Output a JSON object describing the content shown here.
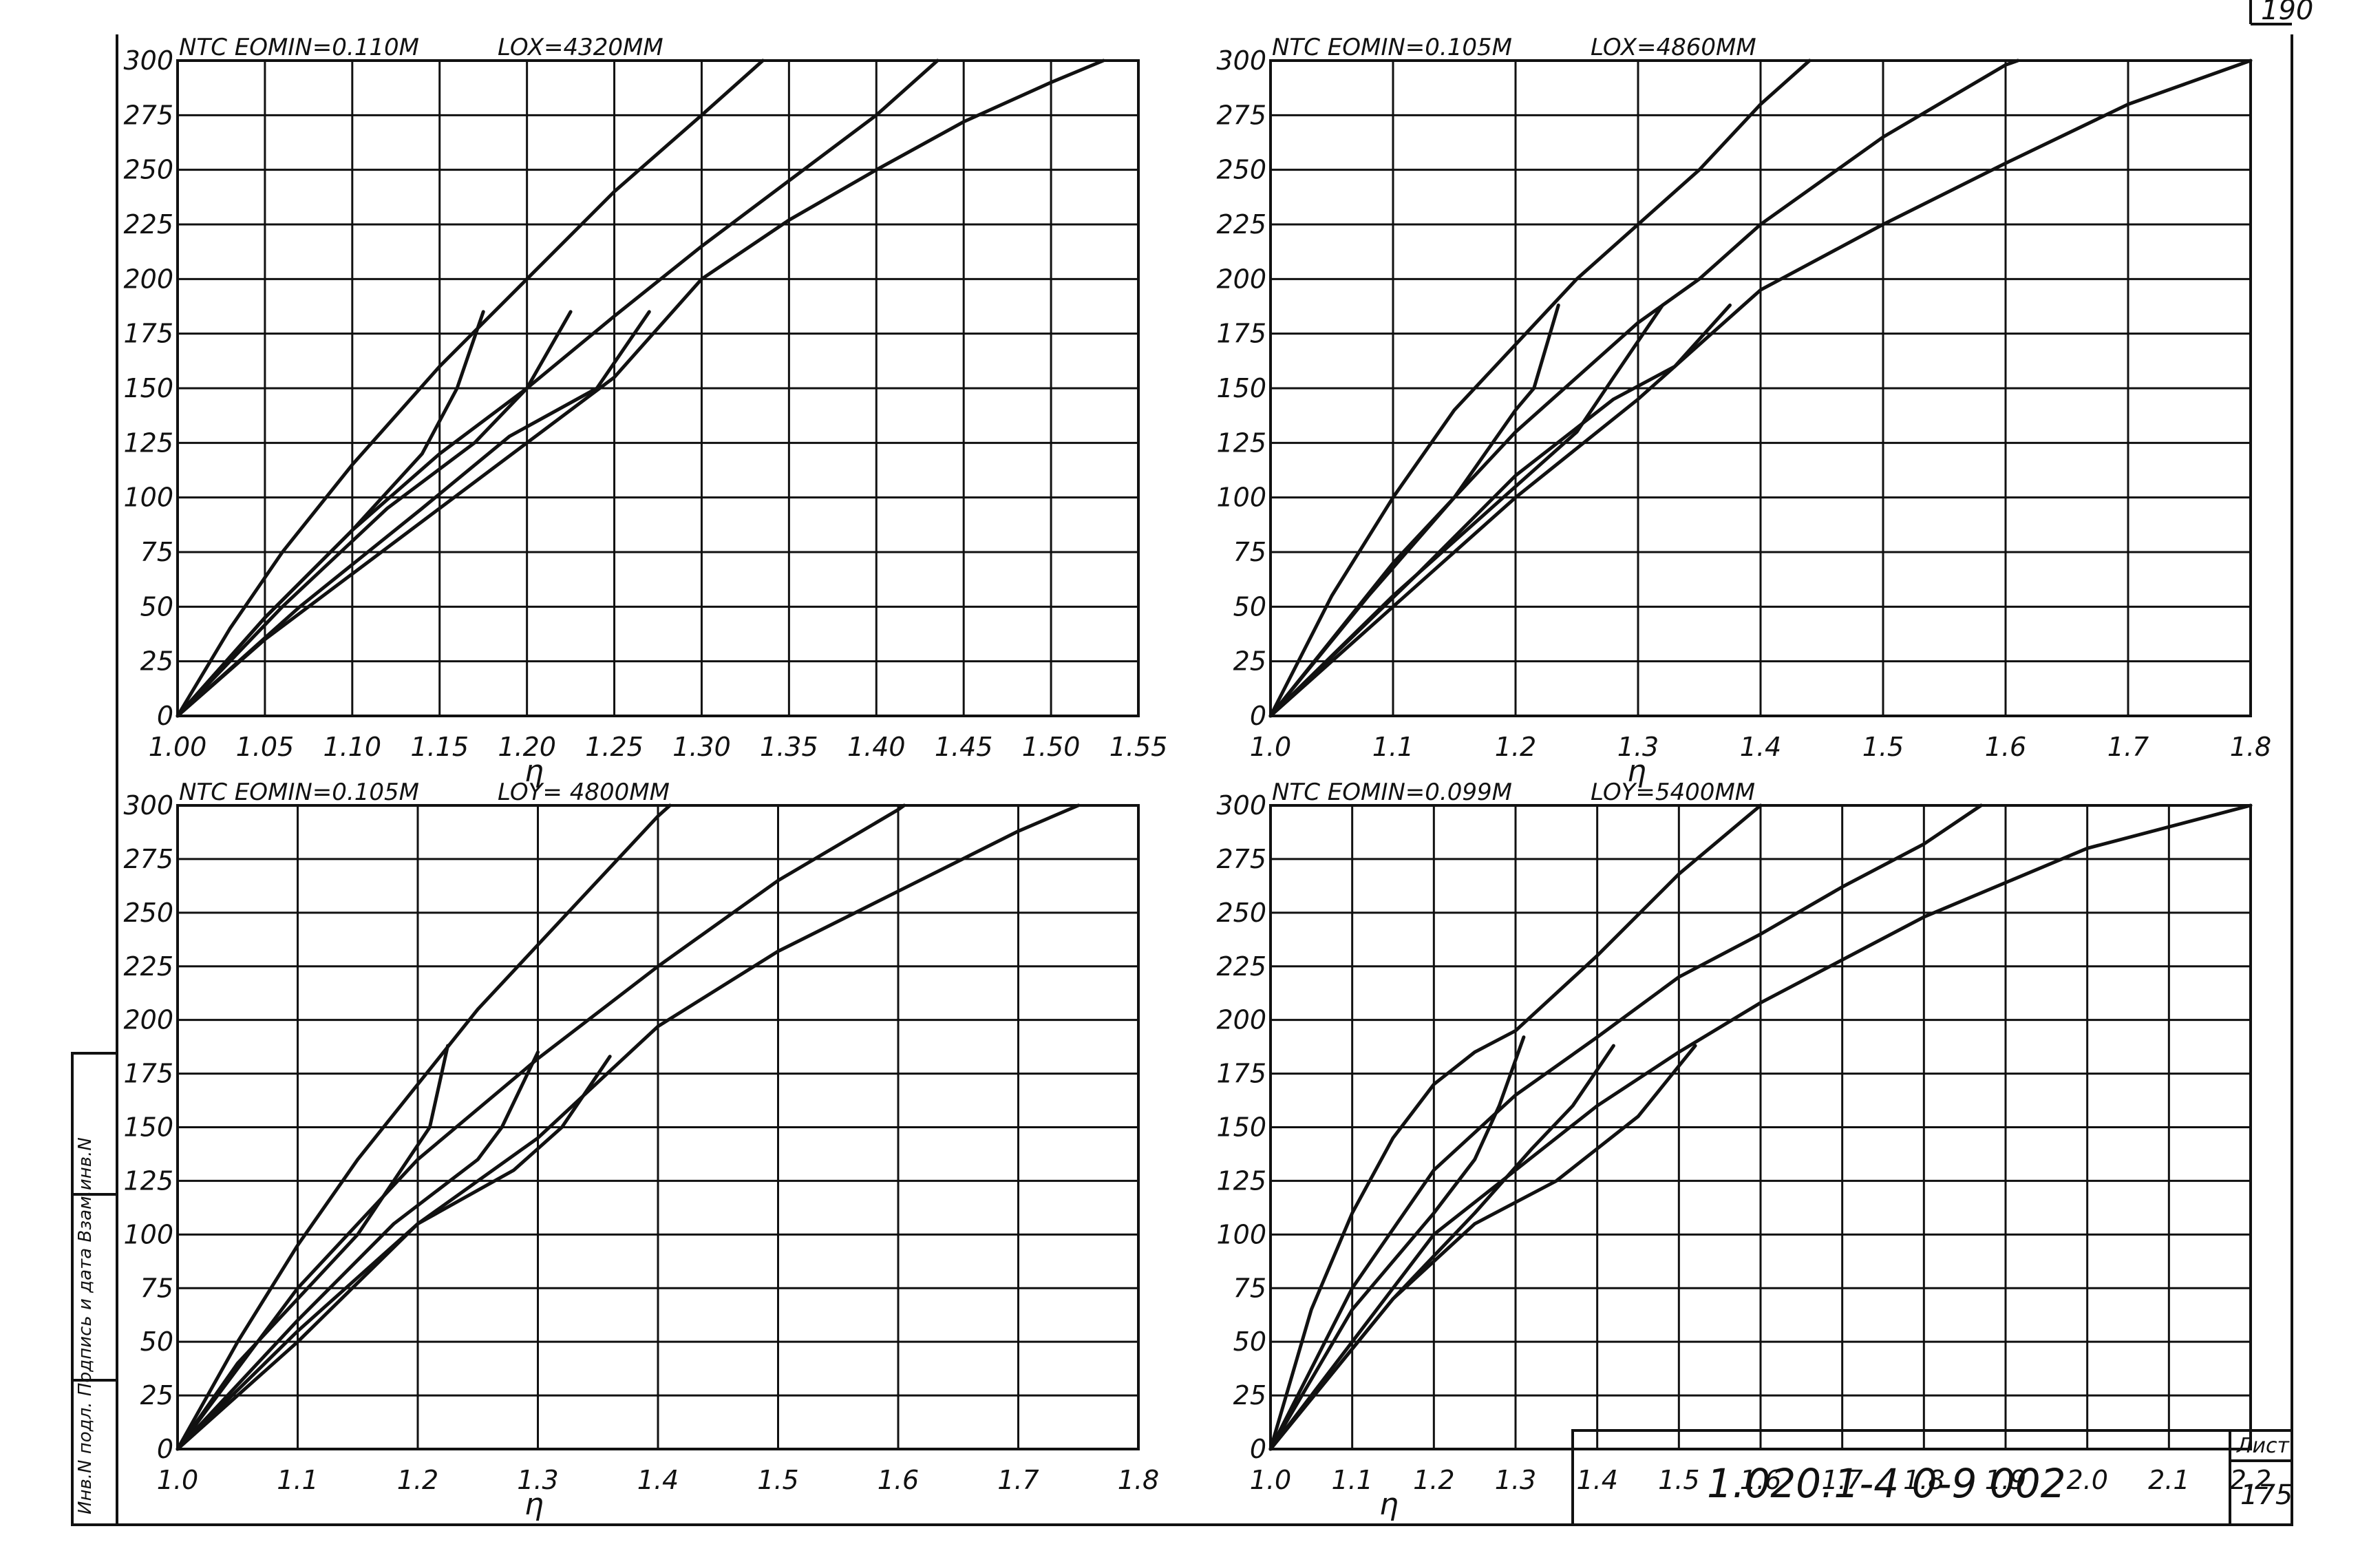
{
  "sheet": {
    "corner_number": "190",
    "title_block": {
      "code": "1.020.1-4   0-9  002",
      "sheet_label": "Лист",
      "sheet_number": "175"
    },
    "side_stamp": "Инв.N подл.   Подпись и дата   Взам.инв.N"
  },
  "chart_data": [
    {
      "type": "line",
      "header_left": "NTC EOMIN=0.110M",
      "header_right": "LOX=4320MM",
      "xlabel": "η",
      "ylabel": "",
      "xlim": [
        1.0,
        1.55
      ],
      "ylim": [
        0,
        300
      ],
      "x_ticks": [
        "1.00",
        "1.05",
        "1.10",
        "1.15",
        "1.20",
        "1.25",
        "1.30",
        "1.35",
        "1.40",
        "1.45",
        "1.50",
        "1.55"
      ],
      "x_tick_values": [
        1.0,
        1.05,
        1.1,
        1.15,
        1.2,
        1.25,
        1.3,
        1.35,
        1.4,
        1.45,
        1.5,
        1.55
      ],
      "y_ticks": [
        "0",
        "25",
        "50",
        "75",
        "100",
        "125",
        "150",
        "175",
        "200",
        "225",
        "250",
        "275",
        "300"
      ],
      "y_tick_values": [
        0,
        25,
        50,
        75,
        100,
        125,
        150,
        175,
        200,
        225,
        250,
        275,
        300
      ],
      "series": [
        {
          "points": [
            [
              1.0,
              0
            ],
            [
              1.03,
              40
            ],
            [
              1.06,
              75
            ],
            [
              1.1,
              115
            ],
            [
              1.15,
              160
            ],
            [
              1.2,
              200
            ],
            [
              1.25,
              240
            ],
            [
              1.3,
              275
            ],
            [
              1.335,
              300
            ]
          ]
        },
        {
          "points": [
            [
              1.0,
              0
            ],
            [
              1.05,
              45
            ],
            [
              1.1,
              85
            ],
            [
              1.15,
              120
            ],
            [
              1.2,
              150
            ],
            [
              1.25,
              183
            ],
            [
              1.3,
              215
            ],
            [
              1.35,
              245
            ],
            [
              1.4,
              275
            ],
            [
              1.435,
              300
            ]
          ]
        },
        {
          "points": [
            [
              1.0,
              0
            ],
            [
              1.05,
              35
            ],
            [
              1.1,
              65
            ],
            [
              1.15,
              95
            ],
            [
              1.2,
              125
            ],
            [
              1.25,
              155
            ],
            [
              1.3,
              200
            ],
            [
              1.35,
              227
            ],
            [
              1.4,
              250
            ],
            [
              1.45,
              272
            ],
            [
              1.5,
              290
            ],
            [
              1.53,
              300
            ]
          ]
        },
        {
          "points": [
            [
              1.0,
              0
            ],
            [
              1.05,
              45
            ],
            [
              1.1,
              85
            ],
            [
              1.14,
              120
            ],
            [
              1.16,
              150
            ],
            [
              1.175,
              185
            ]
          ]
        },
        {
          "points": [
            [
              1.0,
              0
            ],
            [
              1.06,
              50
            ],
            [
              1.12,
              95
            ],
            [
              1.17,
              125
            ],
            [
              1.2,
              150
            ],
            [
              1.225,
              185
            ]
          ]
        },
        {
          "points": [
            [
              1.0,
              0
            ],
            [
              1.07,
              50
            ],
            [
              1.14,
              95
            ],
            [
              1.19,
              128
            ],
            [
              1.24,
              150
            ],
            [
              1.27,
              185
            ]
          ]
        }
      ]
    },
    {
      "type": "line",
      "header_left": "NTC EOMIN=0.105M",
      "header_right": "LOX=4860MM",
      "xlabel": "η",
      "ylabel": "",
      "xlim": [
        1.0,
        1.8
      ],
      "ylim": [
        0,
        300
      ],
      "x_ticks": [
        "1.0",
        "1.1",
        "1.2",
        "1.3",
        "1.4",
        "1.5",
        "1.6",
        "1.7",
        "1.8"
      ],
      "x_tick_values": [
        1.0,
        1.1,
        1.2,
        1.3,
        1.4,
        1.5,
        1.6,
        1.7,
        1.8
      ],
      "y_ticks": [
        "0",
        "25",
        "50",
        "75",
        "100",
        "125",
        "150",
        "175",
        "200",
        "225",
        "250",
        "275",
        "300"
      ],
      "y_tick_values": [
        0,
        25,
        50,
        75,
        100,
        125,
        150,
        175,
        200,
        225,
        250,
        275,
        300
      ],
      "series": [
        {
          "points": [
            [
              1.0,
              0
            ],
            [
              1.05,
              55
            ],
            [
              1.1,
              100
            ],
            [
              1.15,
              140
            ],
            [
              1.2,
              170
            ],
            [
              1.25,
              200
            ],
            [
              1.3,
              225
            ],
            [
              1.35,
              250
            ],
            [
              1.4,
              280
            ],
            [
              1.44,
              300
            ]
          ]
        },
        {
          "points": [
            [
              1.0,
              0
            ],
            [
              1.1,
              70
            ],
            [
              1.2,
              130
            ],
            [
              1.3,
              180
            ],
            [
              1.35,
              200
            ],
            [
              1.4,
              225
            ],
            [
              1.5,
              265
            ],
            [
              1.6,
              298
            ],
            [
              1.61,
              300
            ]
          ]
        },
        {
          "points": [
            [
              1.0,
              0
            ],
            [
              1.1,
              50
            ],
            [
              1.2,
              100
            ],
            [
              1.3,
              145
            ],
            [
              1.4,
              195
            ],
            [
              1.5,
              225
            ],
            [
              1.6,
              253
            ],
            [
              1.7,
              280
            ],
            [
              1.8,
              300
            ]
          ]
        },
        {
          "points": [
            [
              1.0,
              0
            ],
            [
              1.08,
              55
            ],
            [
              1.15,
              100
            ],
            [
              1.2,
              140
            ],
            [
              1.215,
              150
            ],
            [
              1.235,
              188
            ]
          ]
        },
        {
          "points": [
            [
              1.0,
              0
            ],
            [
              1.1,
              55
            ],
            [
              1.2,
              105
            ],
            [
              1.25,
              130
            ],
            [
              1.28,
              155
            ],
            [
              1.32,
              188
            ]
          ]
        },
        {
          "points": [
            [
              1.0,
              0
            ],
            [
              1.12,
              65
            ],
            [
              1.2,
              110
            ],
            [
              1.28,
              145
            ],
            [
              1.33,
              160
            ],
            [
              1.375,
              188
            ]
          ]
        }
      ]
    },
    {
      "type": "line",
      "header_left": "NTC EOMIN=0.105M",
      "header_right": "LOY= 4800MM",
      "xlabel": "η",
      "ylabel": "",
      "xlim": [
        1.0,
        1.8
      ],
      "ylim": [
        0,
        300
      ],
      "x_ticks": [
        "1.0",
        "1.1",
        "1.2",
        "1.3",
        "1.4",
        "1.5",
        "1.6",
        "1.7",
        "1.8"
      ],
      "x_tick_values": [
        1.0,
        1.1,
        1.2,
        1.3,
        1.4,
        1.5,
        1.6,
        1.7,
        1.8
      ],
      "y_ticks": [
        "0",
        "25",
        "50",
        "75",
        "100",
        "125",
        "150",
        "175",
        "200",
        "225",
        "250",
        "275",
        "300"
      ],
      "y_tick_values": [
        0,
        25,
        50,
        75,
        100,
        125,
        150,
        175,
        200,
        225,
        250,
        275,
        300
      ],
      "series": [
        {
          "points": [
            [
              1.0,
              0
            ],
            [
              1.05,
              50
            ],
            [
              1.1,
              95
            ],
            [
              1.15,
              135
            ],
            [
              1.2,
              170
            ],
            [
              1.25,
              205
            ],
            [
              1.3,
              235
            ],
            [
              1.35,
              265
            ],
            [
              1.4,
              295
            ],
            [
              1.41,
              300
            ]
          ]
        },
        {
          "points": [
            [
              1.0,
              0
            ],
            [
              1.1,
              75
            ],
            [
              1.2,
              135
            ],
            [
              1.3,
              182
            ],
            [
              1.4,
              225
            ],
            [
              1.5,
              265
            ],
            [
              1.6,
              298
            ],
            [
              1.605,
              300
            ]
          ]
        },
        {
          "points": [
            [
              1.0,
              0
            ],
            [
              1.1,
              55
            ],
            [
              1.2,
              105
            ],
            [
              1.3,
              145
            ],
            [
              1.4,
              197
            ],
            [
              1.5,
              232
            ],
            [
              1.6,
              260
            ],
            [
              1.7,
              288
            ],
            [
              1.75,
              300
            ]
          ]
        },
        {
          "points": [
            [
              1.0,
              0
            ],
            [
              1.05,
              40
            ],
            [
              1.1,
              70
            ],
            [
              1.15,
              100
            ],
            [
              1.18,
              125
            ],
            [
              1.21,
              150
            ],
            [
              1.225,
              188
            ]
          ]
        },
        {
          "points": [
            [
              1.0,
              0
            ],
            [
              1.1,
              60
            ],
            [
              1.18,
              105
            ],
            [
              1.25,
              135
            ],
            [
              1.27,
              150
            ],
            [
              1.3,
              185
            ]
          ]
        },
        {
          "points": [
            [
              1.0,
              0
            ],
            [
              1.1,
              50
            ],
            [
              1.2,
              105
            ],
            [
              1.28,
              130
            ],
            [
              1.32,
              150
            ],
            [
              1.36,
              183
            ]
          ]
        }
      ]
    },
    {
      "type": "line",
      "header_left": "NTC EOMIN=0.099M",
      "header_right": "LOY=5400MM",
      "xlabel": "η",
      "ylabel": "",
      "xlim": [
        1.0,
        2.2
      ],
      "ylim": [
        0,
        300
      ],
      "x_ticks": [
        "1.0",
        "1.1",
        "1.2",
        "1.3",
        "1.4",
        "1.5",
        "1.6",
        "1.7",
        "1.8",
        "1.9",
        "2.0",
        "2.1",
        "2.2"
      ],
      "x_tick_values": [
        1.0,
        1.1,
        1.2,
        1.3,
        1.4,
        1.5,
        1.6,
        1.7,
        1.8,
        1.9,
        2.0,
        2.1,
        2.2
      ],
      "y_ticks": [
        "0",
        "25",
        "50",
        "75",
        "100",
        "125",
        "150",
        "175",
        "200",
        "225",
        "250",
        "275",
        "300"
      ],
      "y_tick_values": [
        0,
        25,
        50,
        75,
        100,
        125,
        150,
        175,
        200,
        225,
        250,
        275,
        300
      ],
      "series": [
        {
          "points": [
            [
              1.0,
              0
            ],
            [
              1.05,
              65
            ],
            [
              1.1,
              110
            ],
            [
              1.15,
              145
            ],
            [
              1.2,
              170
            ],
            [
              1.25,
              185
            ],
            [
              1.3,
              195
            ],
            [
              1.4,
              230
            ],
            [
              1.5,
              268
            ],
            [
              1.6,
              300
            ]
          ]
        },
        {
          "points": [
            [
              1.0,
              0
            ],
            [
              1.1,
              75
            ],
            [
              1.2,
              130
            ],
            [
              1.3,
              165
            ],
            [
              1.4,
              192
            ],
            [
              1.5,
              220
            ],
            [
              1.6,
              240
            ],
            [
              1.7,
              262
            ],
            [
              1.8,
              282
            ],
            [
              1.87,
              300
            ]
          ]
        },
        {
          "points": [
            [
              1.0,
              0
            ],
            [
              1.1,
              50
            ],
            [
              1.2,
              100
            ],
            [
              1.3,
              130
            ],
            [
              1.4,
              160
            ],
            [
              1.5,
              185
            ],
            [
              1.6,
              208
            ],
            [
              1.8,
              248
            ],
            [
              2.0,
              280
            ],
            [
              2.2,
              300
            ]
          ]
        },
        {
          "points": [
            [
              1.0,
              0
            ],
            [
              1.1,
              65
            ],
            [
              1.2,
              110
            ],
            [
              1.25,
              135
            ],
            [
              1.28,
              160
            ],
            [
              1.31,
              192
            ]
          ]
        },
        {
          "points": [
            [
              1.0,
              0
            ],
            [
              1.15,
              70
            ],
            [
              1.25,
              110
            ],
            [
              1.32,
              140
            ],
            [
              1.37,
              160
            ],
            [
              1.42,
              188
            ]
          ]
        },
        {
          "points": [
            [
              1.0,
              0
            ],
            [
              1.15,
              70
            ],
            [
              1.25,
              105
            ],
            [
              1.35,
              125
            ],
            [
              1.45,
              155
            ],
            [
              1.52,
              188
            ]
          ]
        }
      ]
    }
  ]
}
